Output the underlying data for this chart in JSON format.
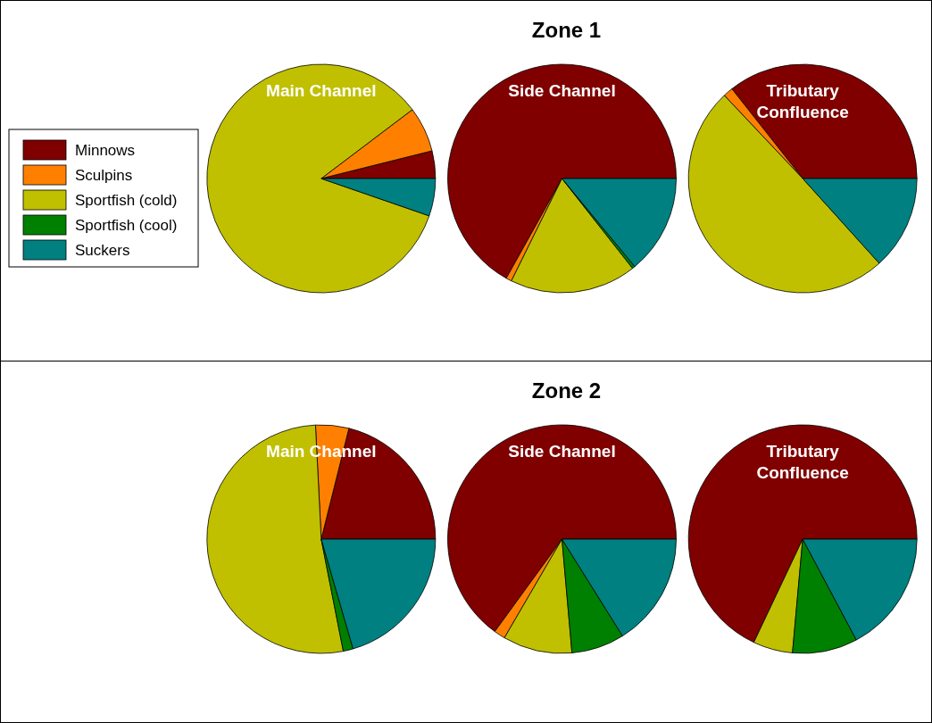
{
  "chart_data": [
    {
      "type": "pie",
      "title": "Main Channel",
      "annotations": [
        "Zone 1"
      ],
      "legend": "left",
      "categories": [
        "Minnows",
        "Sculpins",
        "Sportfish (cold)",
        "Sportfish (cool)",
        "Suckers"
      ],
      "values": [
        3.9,
        6.4,
        84.4,
        0,
        5.3
      ],
      "colors": [
        "#800000",
        "#ff8000",
        "#c0c000",
        "#008000",
        "#008080"
      ]
    },
    {
      "type": "pie",
      "title": "Side Channel",
      "categories": [
        null,
        null,
        null,
        null,
        null
      ],
      "values": [
        66.9,
        0.8,
        17.9,
        0.4,
        14.0
      ],
      "colors": [
        "#800000",
        "#ff8000",
        "#c0c000",
        "#008000",
        "#008080"
      ]
    },
    {
      "type": "pie",
      "title": "Tributary Confluence",
      "categories": [
        null,
        null,
        null,
        null,
        null
      ],
      "values": [
        35.6,
        1.4,
        49.6,
        null,
        13.3
      ],
      "colors": [
        "#800000",
        "#ff8000",
        "#c0c000",
        null,
        "#008080"
      ]
    },
    {
      "type": "pie",
      "title": "Main Channel",
      "annotations": [
        "Zone 2"
      ],
      "categories": [
        null,
        null,
        null,
        null,
        null
      ],
      "values": [
        21.1,
        4.7,
        52.3,
        1.4,
        20.5
      ],
      "colors": [
        "#800000",
        "#ff8000",
        "#c0c000",
        "#008000",
        "#008080"
      ]
    },
    {
      "type": "pie",
      "title": "Side Channel",
      "categories": [
        null,
        null,
        null,
        null,
        null
      ],
      "values": [
        65.0,
        1.6,
        9.8,
        7.5,
        16.1
      ],
      "colors": [
        "#800000",
        "#ff8000",
        "#c0c000",
        "#008000",
        "#008080"
      ]
    },
    {
      "type": "pie",
      "title": "Tributary Confluence",
      "categories": [
        null,
        null,
        null,
        null,
        null
      ],
      "values": [
        67.9,
        null,
        5.6,
        9.2,
        17.2
      ],
      "colors": [
        "#800000",
        null,
        "#c0c000",
        "#008000",
        "#008080"
      ]
    }
  ]
}
